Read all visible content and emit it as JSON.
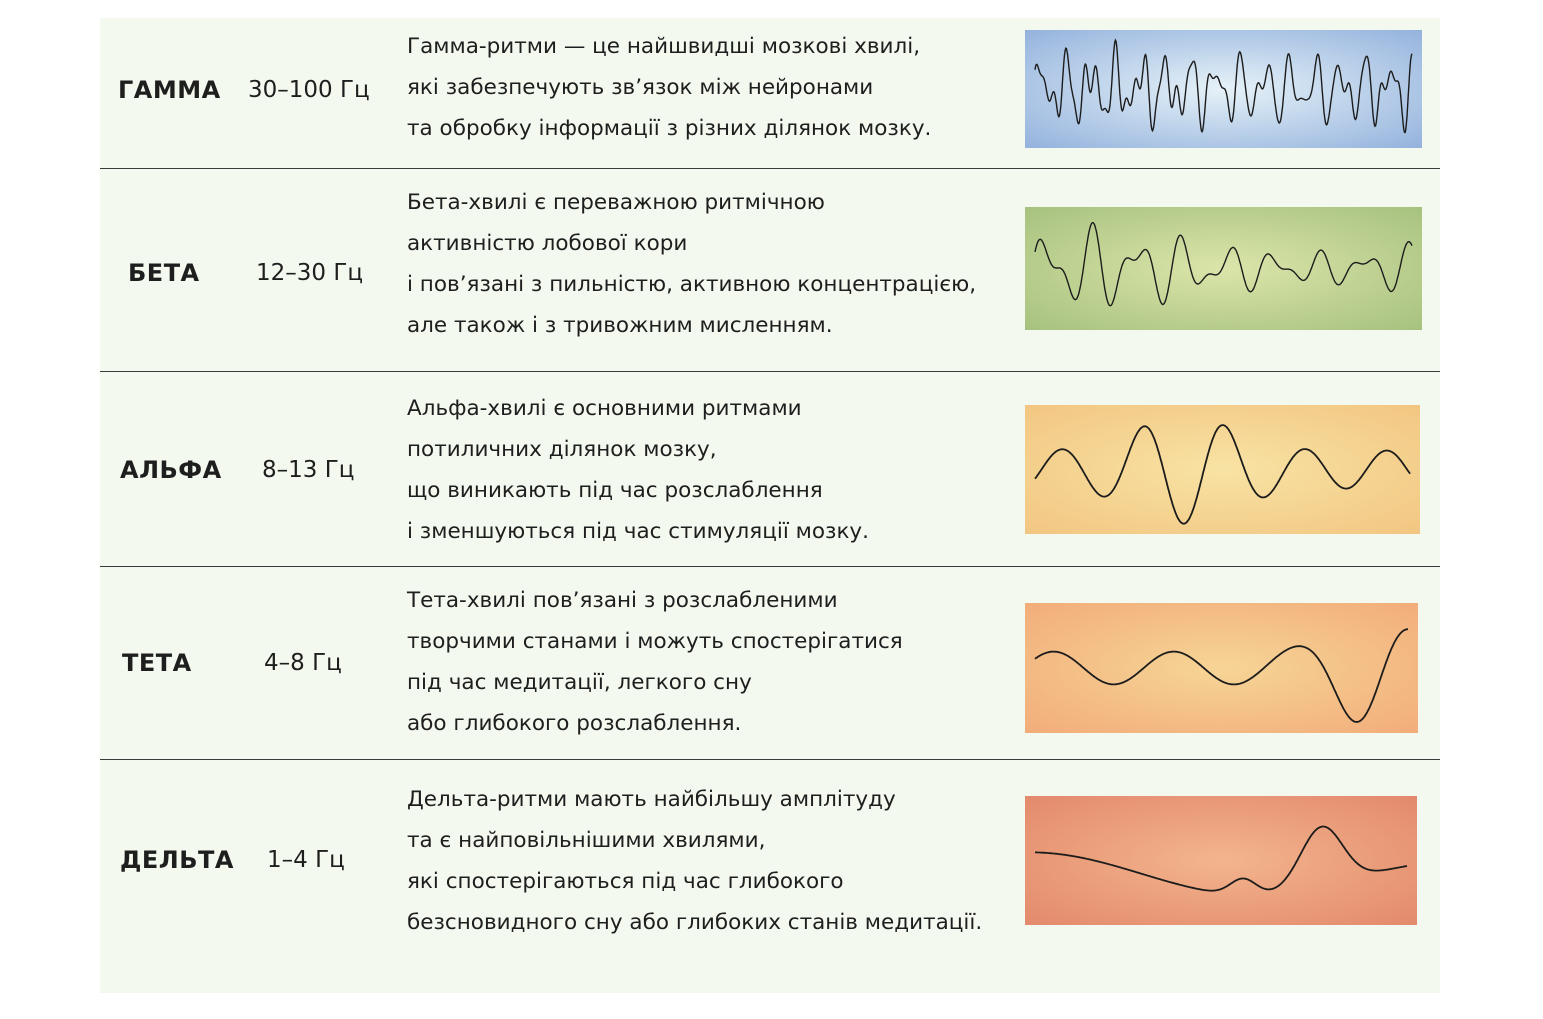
{
  "rows": [
    {
      "name": "ГАММА",
      "frequency": "30–100 Гц",
      "description": [
        "Гамма-ритми — це найшвидші мозкові хвилі,",
        "які забезпечують зв’язок між нейронами",
        "та обробку інформації з різних ділянок мозку."
      ]
    },
    {
      "name": "БЕТА",
      "frequency": "12–30 Гц",
      "description": [
        "Бета-хвилі є переважною ритмічною",
        "активністю лобової кори",
        "і пов’язані з пильністю, активною концентрацією,",
        "але також і з тривожним мисленням."
      ]
    },
    {
      "name": "АЛЬФА",
      "frequency": "8–13 Гц",
      "description": [
        "Альфа-хвилі є основними ритмами",
        "потиличних ділянок мозку,",
        "що виникають під час розслаблення",
        "і зменшуються під час стимуляції мозку."
      ]
    },
    {
      "name": "ТЕТА",
      "frequency": "4–8 Гц",
      "description": [
        "Тета-хвилі пов’язані з розслабленими",
        "творчими станами і можуть спостерігатися",
        "під час медитації, легкого сну",
        "або глибокого розслаблення."
      ]
    },
    {
      "name": "ДЕЛЬТА",
      "frequency": "1–4 Гц",
      "description": [
        "Дельта-ритми мають найбільшу амплітуду",
        "та є найповільнішими хвилями,",
        "які спостерігаються під час глибокого",
        "безсновидного сну або глибоких станів медитації."
      ]
    }
  ]
}
